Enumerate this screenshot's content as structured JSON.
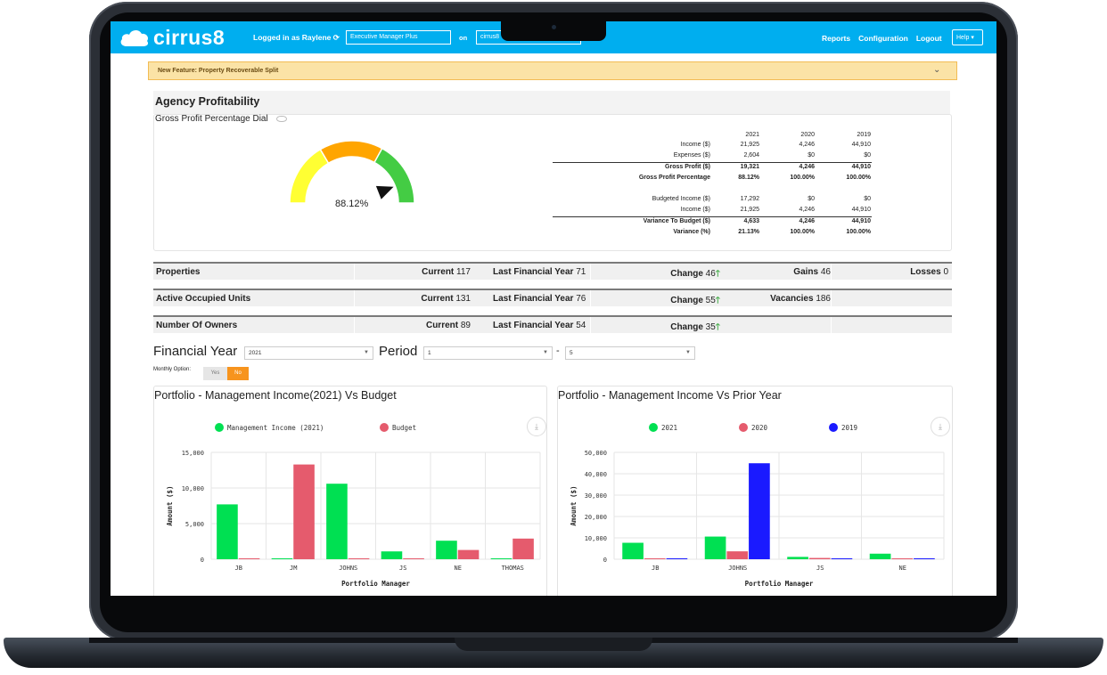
{
  "app": {
    "logo": "cirrus8",
    "logged_in": "Logged in as Raylene",
    "role": "Executive Manager Plus",
    "on": "on",
    "database": "cirrus8"
  },
  "nav": {
    "reports": "Reports",
    "configuration": "Configuration",
    "logout": "Logout",
    "help": "Help"
  },
  "banner": {
    "text": "New Feature: Property Recoverable Split"
  },
  "profitability": {
    "title": "Agency Profitability",
    "dial_label": "Gross Profit Percentage Dial",
    "dial_value": "88.12%",
    "dial_fraction": 0.8812,
    "years": [
      "2021",
      "2020",
      "2019"
    ],
    "rows": [
      {
        "label": "Income ($)",
        "values": [
          "21,925",
          "4,246",
          "44,910"
        ],
        "bold": false
      },
      {
        "label": "Expenses ($)",
        "values": [
          "2,604",
          "$0",
          "$0"
        ],
        "bold": false
      },
      {
        "label": "Gross Profit ($)",
        "values": [
          "19,321",
          "4,246",
          "44,910"
        ],
        "bold": true
      },
      {
        "label": "Gross Profit Percentage",
        "values": [
          "88.12%",
          "100.00%",
          "100.00%"
        ],
        "bold": true
      },
      {
        "label": "Budgeted Income ($)",
        "values": [
          "17,292",
          "$0",
          "$0"
        ],
        "bold": false
      },
      {
        "label": "Income ($)",
        "values": [
          "21,925",
          "4,246",
          "44,910"
        ],
        "bold": false
      },
      {
        "label": "Variance To Budget ($)",
        "values": [
          "4,633",
          "4,246",
          "44,910"
        ],
        "bold": true
      },
      {
        "label": "Variance (%)",
        "values": [
          "21.13%",
          "100.00%",
          "100.00%"
        ],
        "bold": true
      }
    ]
  },
  "kpis": [
    {
      "label": "Properties",
      "current_label": "Current",
      "current": "117",
      "last_label": "Last Financial Year",
      "last": "71",
      "change_label": "Change",
      "change": "46",
      "extra1_label": "Gains",
      "extra1": "46",
      "extra2_label": "Losses",
      "extra2": "0"
    },
    {
      "label": "Active Occupied Units",
      "current_label": "Current",
      "current": "131",
      "last_label": "Last Financial Year",
      "last": "76",
      "change_label": "Change",
      "change": "55",
      "extra1_label": "Vacancies",
      "extra1": "186"
    },
    {
      "label": "Number Of Owners",
      "current_label": "Current",
      "current": "89",
      "last_label": "Last Financial Year",
      "last": "54",
      "change_label": "Change",
      "change": "35"
    }
  ],
  "filters": {
    "fy_label": "Financial Year",
    "fy_value": "2021",
    "period_label": "Period",
    "period_from": "1",
    "dash": "-",
    "period_to": "5",
    "monthly_label": "Monthly Option:",
    "yes": "Yes",
    "no": "No"
  },
  "colors": {
    "green": "#00e052",
    "red": "#e55b6d",
    "blue": "#1a1aff",
    "accent": "#00aeef",
    "orange": "#f7941d"
  },
  "chart_data": [
    {
      "type": "bar",
      "title": "Portfolio - Management Income(2021) Vs Budget",
      "categories": [
        "JB",
        "JM",
        "JOHNS",
        "JS",
        "NE",
        "THOMAS"
      ],
      "series": [
        {
          "name": "Management Income (2021)",
          "color": "#00e052",
          "values": [
            7700,
            0,
            10600,
            1100,
            2600,
            0
          ]
        },
        {
          "name": "Budget",
          "color": "#e55b6d",
          "values": [
            0,
            13300,
            0,
            0,
            1300,
            2900
          ]
        }
      ],
      "yticks": [
        "0",
        "5,000",
        "10,000",
        "15,000"
      ],
      "ylim": [
        0,
        15000
      ],
      "xlabel": "Portfolio Manager",
      "ylabel": "Amount ($)"
    },
    {
      "type": "bar",
      "title": "Portfolio - Management Income Vs Prior Year",
      "categories": [
        "JB",
        "JOHNS",
        "JS",
        "NE"
      ],
      "series": [
        {
          "name": "2021",
          "color": "#00e052",
          "values": [
            7700,
            10600,
            1100,
            2600
          ]
        },
        {
          "name": "2020",
          "color": "#e55b6d",
          "values": [
            0,
            3700,
            600,
            0
          ]
        },
        {
          "name": "2019",
          "color": "#1a1aff",
          "values": [
            0,
            44910,
            0,
            0
          ]
        }
      ],
      "yticks": [
        "0",
        "10,000",
        "20,000",
        "30,000",
        "40,000",
        "50,000"
      ],
      "ylim": [
        0,
        50000
      ],
      "xlabel": "Portfolio Manager",
      "ylabel": "Amount ($)"
    }
  ]
}
